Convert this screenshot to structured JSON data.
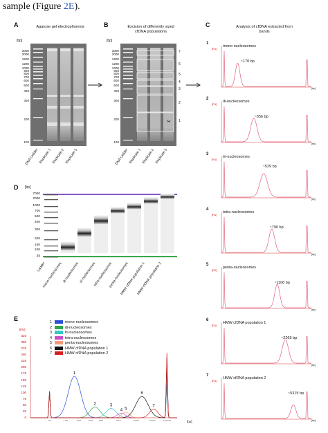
{
  "caption": {
    "text": "sample (Figure ",
    "link": "2E",
    "tail": ")."
  },
  "panelA": {
    "label": "A",
    "title": "Agarose gel electrophoresis",
    "unit": "[bp]",
    "ladder": [
      "3000",
      "2000",
      "1500",
      "1200",
      "1000",
      "900",
      "800",
      "700",
      "600",
      "500",
      "400",
      "300",
      "200",
      "100"
    ],
    "lanes": [
      "DNA Ladder",
      "Replicate 1",
      "Replicate 2",
      "Replicate 3"
    ]
  },
  "panelB": {
    "label": "B",
    "title": "Excision of differently sized cfDNA populations",
    "unit": "[bp]",
    "ladder": [
      "3000",
      "2000",
      "1500",
      "1200",
      "1000",
      "900",
      "800",
      "700",
      "600",
      "500",
      "400",
      "300",
      "200",
      "100"
    ],
    "lanes": [
      "DNA Ladder",
      "Replicate 1",
      "Replicate 2",
      "Replicate 3"
    ],
    "boxes": [
      "7",
      "6",
      "5",
      "4",
      "3",
      "2",
      "1"
    ]
  },
  "panelC": {
    "label": "C",
    "title": "Analysis of cfDNA extracted from bands",
    "yunit": "[FU]",
    "xunit": "[bp]",
    "plots": [
      {
        "num": "1",
        "name": "mono-nucleosomes",
        "peak": "~170 bp"
      },
      {
        "num": "2",
        "name": "di-nucleosomes",
        "peak": "~356 bp"
      },
      {
        "num": "3",
        "name": "tri-nucleosomes",
        "peak": "~529 bp"
      },
      {
        "num": "4",
        "name": "tetra-nucleosomes",
        "peak": "~790 bp"
      },
      {
        "num": "5",
        "name": "penta-nucleosomes",
        "peak": "~1108 bp"
      },
      {
        "num": "6",
        "name": "HMW cfDNA population 1",
        "peak": "~2265 bp"
      },
      {
        "num": "7",
        "name": "HMW cfDNA population 2",
        "peak": "~5315 bp"
      }
    ]
  },
  "panelD": {
    "label": "D",
    "unit": "[bp]",
    "ladder": [
      "7000",
      "2000",
      "1000",
      "700",
      "500",
      "400",
      "300",
      "200",
      "150",
      "100",
      "35"
    ],
    "lanes": [
      "Ladder",
      "mono-nucleosomes",
      "di-nucleosomes",
      "tri-nucleosomes",
      "tetra-nucleosomes",
      "penta-nucleosomes",
      "HMW cfDNA population 1",
      "HMW cfDNA population 2"
    ]
  },
  "panelE": {
    "label": "E",
    "yunit": "[FU]",
    "xunit": "[bp]",
    "yticks": [
      "325",
      "300",
      "275",
      "250",
      "225",
      "200",
      "175",
      "150",
      "125",
      "100",
      "75",
      "50",
      "25",
      "0"
    ],
    "xticks": [
      "35",
      "100",
      "200",
      "300",
      "400",
      "600",
      "1000",
      "2000",
      "10380"
    ],
    "legend": [
      {
        "num": "1",
        "name": "mono-nucleosomes",
        "color": "#2a4fd6"
      },
      {
        "num": "2",
        "name": "di-nucleosomes",
        "color": "#2fa84a"
      },
      {
        "num": "3",
        "name": "tri-nucleosomes",
        "color": "#35c8c8"
      },
      {
        "num": "4",
        "name": "tetra-nucleosomes",
        "color": "#c94fc9"
      },
      {
        "num": "5",
        "name": "penta-nucleosomes",
        "color": "#f09a78"
      },
      {
        "num": "6",
        "name": "HMW cfDNA population 1",
        "color": "#111111"
      },
      {
        "num": "7",
        "name": "HMW cfDNA population 2",
        "color": "#d62020"
      }
    ]
  }
}
